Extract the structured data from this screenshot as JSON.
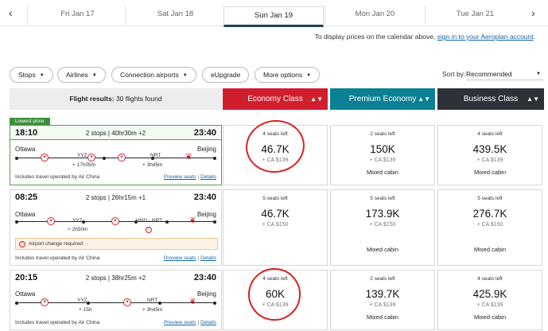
{
  "date_bar": {
    "prev_arrow": "‹",
    "next_arrow": "›",
    "dates": [
      "Fri Jan 17",
      "Sat Jan 18",
      "Sun Jan 19",
      "Mon Jan 20",
      "Tue Jan 21"
    ],
    "active_index": 2
  },
  "calendar_note": {
    "text": "To display prices on the calendar above, ",
    "link": "sign in to your Aeroplan account",
    "suffix": "."
  },
  "filters": {
    "stops": "Stops",
    "airlines": "Airlines",
    "connection_airports": "Connection airports",
    "eupgrade": "eUpgrade",
    "more_options": "More options"
  },
  "sort": {
    "label": "Sort by:",
    "value": "Recommended"
  },
  "results_header": {
    "label": "Flight results:",
    "count_text": "30 flights found"
  },
  "cabins": {
    "economy": "Economy Class",
    "premium": "Premium Economy",
    "business": "Business Class"
  },
  "colors": {
    "economy": "#d11e2d",
    "premium": "#0b7f94",
    "business": "#2c3237",
    "lowest_badge": "#3d8f3a",
    "annotation": "#d9221d"
  },
  "lowest_badge": "Lowest price",
  "flights": [
    {
      "depart": "18:10",
      "arrive": "23:40",
      "stops_text": "2 stops | 40hr30m +2",
      "from": "Ottawa",
      "to": "Beijing",
      "codes": [
        "YYZ",
        "NRT"
      ],
      "layovers": [
        "+ 17h05m",
        "+ 3h45m"
      ],
      "operated": "Includes travel operated by Air China",
      "preview": "Preview seats",
      "details": "Details",
      "fares": {
        "economy": {
          "seats": "4 seats left",
          "points": "46.7K",
          "cash": "+ CA $139",
          "mixed": ""
        },
        "premium": {
          "seats": "2 seats left",
          "points": "150K",
          "cash": "+ CA $139",
          "mixed": "Mixed cabin"
        },
        "business": {
          "seats": "4 seats left",
          "points": "439.5K",
          "cash": "+ CA $139",
          "mixed": "Mixed cabin"
        }
      }
    },
    {
      "depart": "08:25",
      "arrive": "23:40",
      "stops_text": "2 stops | 26hr15m +1",
      "from": "Ottawa",
      "to": "Beijing",
      "codes": [
        "YYZ",
        "HND - NRT"
      ],
      "layovers": [
        "+ 2h50m"
      ],
      "alert": "Airport change required",
      "operated": "Includes travel operated by Air China",
      "preview": "Preview seats",
      "details": "Details",
      "fares": {
        "economy": {
          "seats": "5 seats left",
          "points": "46.7K",
          "cash": "+ CA $150",
          "mixed": ""
        },
        "premium": {
          "seats": "5 seats left",
          "points": "173.9K",
          "cash": "+ CA $150",
          "mixed": "Mixed cabin"
        },
        "business": {
          "seats": "5 seats left",
          "points": "276.7K",
          "cash": "+ CA $150",
          "mixed": "Mixed cabin"
        }
      }
    },
    {
      "depart": "20:15",
      "arrive": "23:40",
      "stops_text": "2 stops | 38hr25m +2",
      "from": "Ottawa",
      "to": "Beijing",
      "codes": [
        "YYZ",
        "NRT"
      ],
      "layovers": [
        "+ 15h",
        "+ 3h45m"
      ],
      "operated": "Includes travel operated by Air China",
      "preview": "Preview seats",
      "details": "Details",
      "fares": {
        "economy": {
          "seats": "4 seats left",
          "points": "60K",
          "cash": "+ CA $139",
          "mixed": ""
        },
        "premium": {
          "seats": "2 seats left",
          "points": "139.7K",
          "cash": "+ CA $139",
          "mixed": "Mixed cabin"
        },
        "business": {
          "seats": "4 seats left",
          "points": "425.9K",
          "cash": "+ CA $139",
          "mixed": "Mixed cabin"
        }
      }
    }
  ]
}
